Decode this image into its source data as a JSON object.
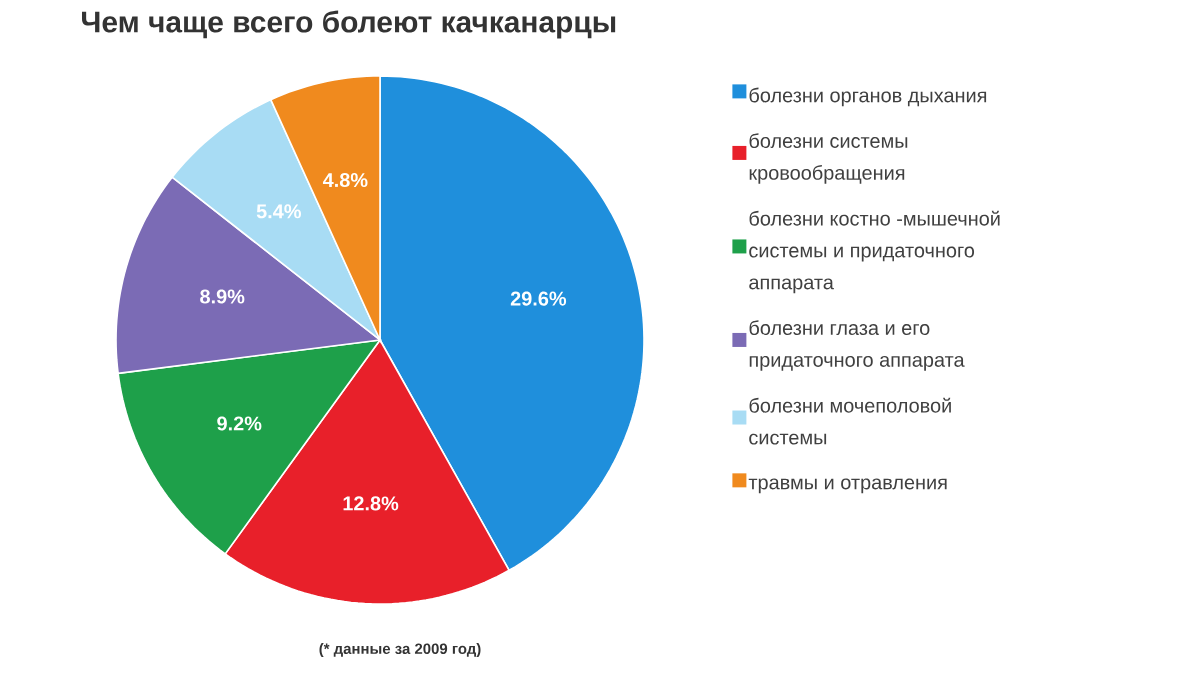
{
  "chart_data": {
    "type": "pie",
    "title": "Чем чаще всего болеют качканарцы",
    "categories": [
      "болезни органов дыхания",
      "болезни системы кровообращения",
      "болезни костно -мышечной системы и придаточного аппарата",
      "болезни глаза и его придаточного аппарата",
      "болезни мочеполовой системы",
      "травмы и отравления"
    ],
    "values": [
      29.6,
      12.8,
      9.2,
      8.9,
      5.4,
      4.8
    ],
    "value_labels": [
      "29.6%",
      "12.8%",
      "9.2%",
      "8.9%",
      "5.4%",
      "4.8%"
    ],
    "colors": [
      "#1f8fdc",
      "#e8202a",
      "#1ea04a",
      "#7b6bb5",
      "#a8dcf4",
      "#f08a1e"
    ],
    "legend": "right",
    "annotations": [
      "(* данные за 2009 год)"
    ]
  }
}
